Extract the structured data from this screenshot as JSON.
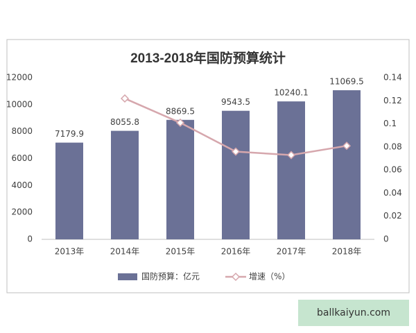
{
  "chart_data": {
    "type": "bar",
    "title": "2013-2018年国防预算统计",
    "categories": [
      "2013年",
      "2014年",
      "2015年",
      "2016年",
      "2017年",
      "2018年"
    ],
    "series": [
      {
        "name": "国防预算：亿元",
        "color": "#6b7196",
        "values": [
          7179.9,
          8055.8,
          8869.5,
          9543.5,
          10240.1,
          11069.5
        ]
      },
      {
        "name": "增速（%）",
        "color": "#d6a7ad",
        "type": "line",
        "axis": "y2",
        "values": [
          null,
          0.122,
          0.101,
          0.076,
          0.073,
          0.081
        ]
      }
    ],
    "ylim": [
      0,
      12000
    ],
    "yticks": [
      0,
      2000,
      4000,
      6000,
      8000,
      10000,
      12000
    ],
    "y2lim": [
      0,
      0.14
    ],
    "y2ticks": [
      0,
      0.02,
      0.04,
      0.06,
      0.08,
      0.1,
      0.12,
      0.14
    ],
    "grid": false,
    "legend": "bottom"
  },
  "watermark": "ballkaiyun.com"
}
